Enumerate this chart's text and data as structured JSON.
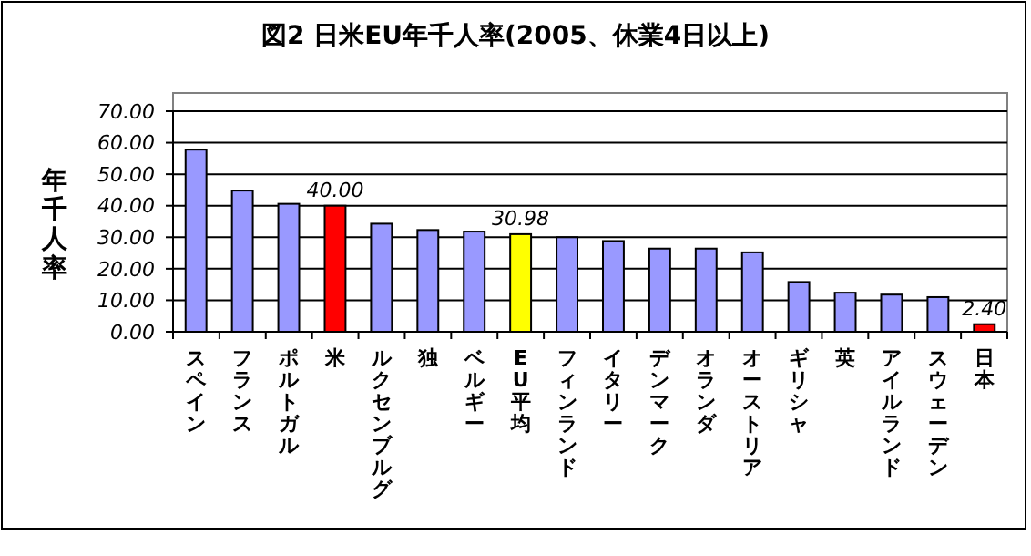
{
  "chart_data": {
    "type": "bar",
    "title": "図2 日米EU年千人率(2005、休業4日以上)",
    "ylabel": "年千人率",
    "categories": [
      "スペイン",
      "フランス",
      "ポルトガル",
      "米",
      "ルクセンブルグ",
      "独",
      "ベルギー",
      "EU平均",
      "フィンランド",
      "イタリー",
      "デンマーク",
      "オランダ",
      "オーストリア",
      "ギリシャ",
      "英",
      "アイルランド",
      "スウェーデン",
      "日本"
    ],
    "values": [
      57.8,
      44.8,
      40.6,
      40.0,
      34.3,
      32.3,
      31.8,
      30.98,
      30.0,
      28.8,
      26.4,
      26.4,
      25.2,
      15.8,
      12.4,
      11.8,
      11.0,
      2.4
    ],
    "colors": [
      "#9999ff",
      "#9999ff",
      "#9999ff",
      "#ff0000",
      "#9999ff",
      "#9999ff",
      "#9999ff",
      "#ffff00",
      "#9999ff",
      "#9999ff",
      "#9999ff",
      "#9999ff",
      "#9999ff",
      "#9999ff",
      "#9999ff",
      "#9999ff",
      "#9999ff",
      "#ff0000"
    ],
    "value_labels": [
      null,
      null,
      null,
      "40.00",
      null,
      null,
      null,
      "30.98",
      null,
      null,
      null,
      null,
      null,
      null,
      null,
      null,
      null,
      "2.40"
    ],
    "ylim": [
      0,
      70
    ],
    "yticks": [
      {
        "value": 0,
        "label": "0.00"
      },
      {
        "value": 10,
        "label": "10.00"
      },
      {
        "value": 20,
        "label": "20.00"
      },
      {
        "value": 30,
        "label": "30.00"
      },
      {
        "value": 40,
        "label": "40.00"
      },
      {
        "value": 50,
        "label": "50.00"
      },
      {
        "value": 60,
        "label": "60.00"
      },
      {
        "value": 70,
        "label": "70.00"
      }
    ],
    "grid": "y"
  }
}
